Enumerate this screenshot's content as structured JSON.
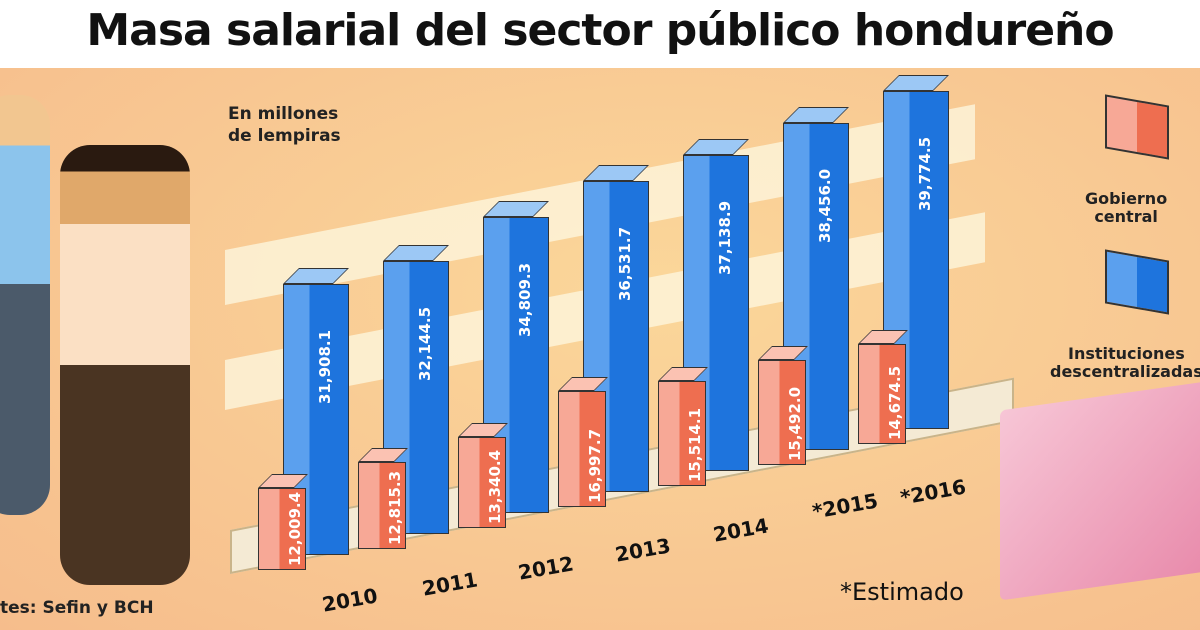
{
  "title": "Masa salarial del sector público hondureño",
  "unit_label_line1": "En millones",
  "unit_label_line2": "de lempiras",
  "source": "tes: Sefin y BCH",
  "note": "*Estimado",
  "colors": {
    "gobierno": "#ee6e50",
    "instituciones": "#1e74dd"
  },
  "chart_data": {
    "type": "bar",
    "title": "Masa salarial del sector público hondureño",
    "ylabel": "En millones de lempiras",
    "categories": [
      "2010",
      "2011",
      "2012",
      "2013",
      "2014",
      "*2015",
      "*2016"
    ],
    "series": [
      {
        "name": "Gobierno central",
        "values": [
          12009.4,
          12815.3,
          13340.4,
          16997.7,
          15514.1,
          15492.0,
          14674.5
        ],
        "labels": [
          "12,009.4",
          "12,815.3",
          "13,340.4",
          "16,997.7",
          "15,514.1",
          "15,492.0",
          "14,674.5"
        ]
      },
      {
        "name": "Instituciones descentralizadas",
        "values": [
          31908.1,
          32144.5,
          34809.3,
          36531.7,
          37138.9,
          38456.0,
          39774.5
        ],
        "labels": [
          "31,908.1",
          "32,144.5",
          "34,809.3",
          "36,531.7",
          "37,138.9",
          "38,456.0",
          "39,774.5"
        ]
      }
    ],
    "legend": "right"
  },
  "legend": {
    "gobierno_line1": "Gobierno",
    "gobierno_line2": "central",
    "inst_line1": "Instituciones",
    "inst_line2": "descentralizadas"
  }
}
